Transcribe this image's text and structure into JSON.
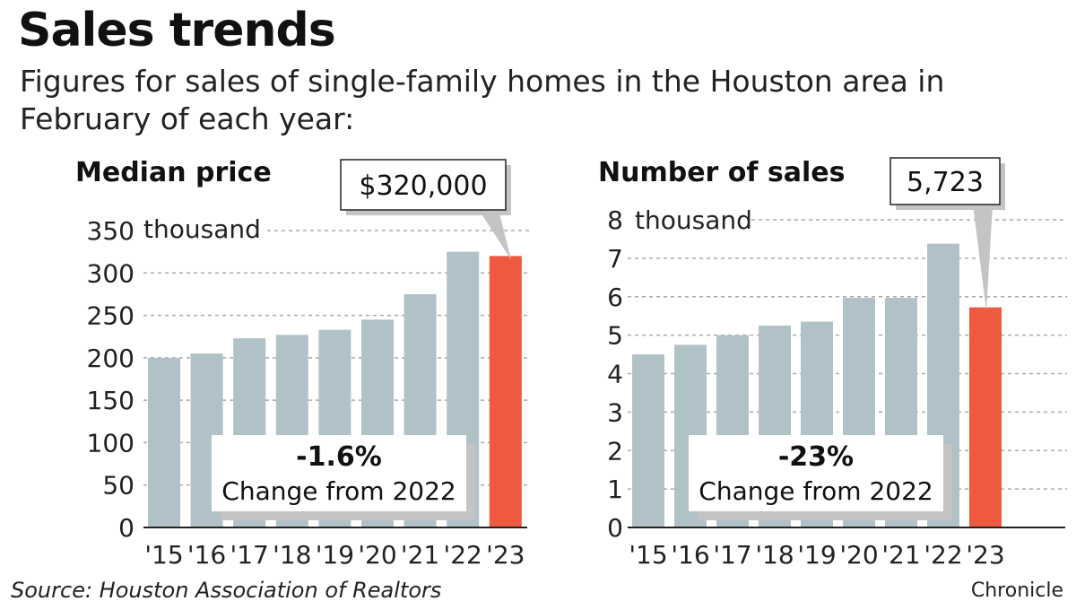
{
  "title": "Sales trends",
  "subtitle": "Figures for sales of single-family homes in the Houston area in February of each year:",
  "source": "Source: Houston Association of Realtors",
  "credit": "Chronicle",
  "colors": {
    "bar": "#b1c1c8",
    "highlight": "#ee5a40",
    "grid": "#aaaaaa",
    "shadow": "#c4c4c4"
  },
  "chart_data": [
    {
      "type": "bar",
      "title": "Median price",
      "categories": [
        "'15",
        "'16",
        "'17",
        "'18",
        "'19",
        "'20",
        "'21",
        "'22",
        "'23"
      ],
      "values": [
        200,
        205,
        223,
        227,
        233,
        245,
        275,
        325,
        320
      ],
      "ylim": [
        0,
        350
      ],
      "yticks": [
        0,
        50,
        100,
        150,
        200,
        250,
        300,
        350
      ],
      "ytick_labels": [
        "0",
        "50",
        "100",
        "150",
        "200",
        "250",
        "300",
        "350"
      ],
      "yunit": "thousand",
      "highlight_index": 8,
      "callout": "$320,000",
      "change_value": "-1.6%",
      "change_label": "Change from 2022"
    },
    {
      "type": "bar",
      "title": "Number of sales",
      "categories": [
        "'15",
        "'16",
        "'17",
        "'18",
        "'19",
        "'20",
        "'21",
        "'22",
        "'23"
      ],
      "values": [
        4.5,
        4.75,
        5.0,
        5.25,
        5.35,
        5.97,
        5.97,
        7.38,
        5.723
      ],
      "ylim": [
        0,
        8
      ],
      "yticks": [
        0,
        1,
        2,
        3,
        4,
        5,
        6,
        7,
        8
      ],
      "ytick_labels": [
        "0",
        "1",
        "2",
        "3",
        "4",
        "5",
        "6",
        "7",
        "8"
      ],
      "yunit": "thousand",
      "highlight_index": 8,
      "callout": "5,723",
      "change_value": "-23%",
      "change_label": "Change from 2022"
    }
  ]
}
